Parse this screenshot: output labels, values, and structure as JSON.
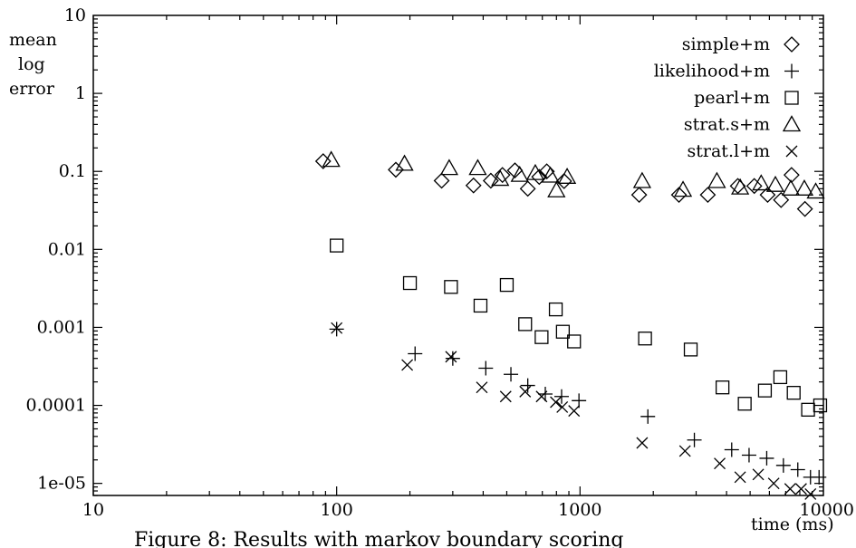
{
  "chart_data": {
    "type": "scatter",
    "ylabel": "mean log error",
    "ylabel_lines": [
      "mean",
      "log",
      "error"
    ],
    "xlabel": "time (ms)",
    "caption": "Figure 8: Results with markov boundary scoring",
    "x_scale": "log",
    "y_scale": "log",
    "xlim": [
      10,
      10000
    ],
    "ylim": [
      7e-06,
      10
    ],
    "grid": false,
    "legend_position": "top-right",
    "x_ticks": [
      {
        "value": 10,
        "label": "10"
      },
      {
        "value": 100,
        "label": "100"
      },
      {
        "value": 1000,
        "label": "1000"
      },
      {
        "value": 10000,
        "label": "10000"
      }
    ],
    "y_ticks": [
      {
        "value": 10,
        "label": "10"
      },
      {
        "value": 1,
        "label": "1"
      },
      {
        "value": 0.1,
        "label": "0.1"
      },
      {
        "value": 0.01,
        "label": "0.01"
      },
      {
        "value": 0.001,
        "label": "0.001"
      },
      {
        "value": 0.0001,
        "label": "0.0001"
      },
      {
        "value": 1e-05,
        "label": "1e-05"
      }
    ],
    "series": [
      {
        "name": "simple+m",
        "marker": "diamond",
        "points": [
          [
            88,
            0.135
          ],
          [
            175,
            0.105
          ],
          [
            270,
            0.076
          ],
          [
            365,
            0.066
          ],
          [
            430,
            0.076
          ],
          [
            480,
            0.09
          ],
          [
            540,
            0.103
          ],
          [
            610,
            0.06
          ],
          [
            680,
            0.085
          ],
          [
            730,
            0.1
          ],
          [
            860,
            0.075
          ],
          [
            1750,
            0.05
          ],
          [
            2550,
            0.05
          ],
          [
            3350,
            0.05
          ],
          [
            4450,
            0.065
          ],
          [
            5200,
            0.065
          ],
          [
            5900,
            0.05
          ],
          [
            6700,
            0.043
          ],
          [
            7400,
            0.09
          ],
          [
            8400,
            0.033
          ]
        ]
      },
      {
        "name": "likelihood+m",
        "marker": "plus",
        "points": [
          [
            100,
            0.00095
          ],
          [
            210,
            0.00046
          ],
          [
            300,
            0.0004
          ],
          [
            410,
            0.0003
          ],
          [
            520,
            0.00025
          ],
          [
            610,
            0.00018
          ],
          [
            720,
            0.00014
          ],
          [
            840,
            0.00013
          ],
          [
            990,
            0.000115
          ],
          [
            1900,
            7.2e-05
          ],
          [
            2950,
            3.6e-05
          ],
          [
            4200,
            2.7e-05
          ],
          [
            4950,
            2.3e-05
          ],
          [
            5850,
            2.1e-05
          ],
          [
            6850,
            1.7e-05
          ],
          [
            7850,
            1.5e-05
          ],
          [
            8850,
            1.2e-05
          ],
          [
            9600,
            1.2e-05
          ]
        ]
      },
      {
        "name": "pearl+m",
        "marker": "square",
        "points": [
          [
            100,
            0.0112
          ],
          [
            200,
            0.0037
          ],
          [
            295,
            0.0033
          ],
          [
            390,
            0.0019
          ],
          [
            500,
            0.0035
          ],
          [
            595,
            0.0011
          ],
          [
            695,
            0.00075
          ],
          [
            795,
            0.0017
          ],
          [
            850,
            0.00088
          ],
          [
            945,
            0.00066
          ],
          [
            1850,
            0.00072
          ],
          [
            2850,
            0.00052
          ],
          [
            3850,
            0.00017
          ],
          [
            4750,
            0.000105
          ],
          [
            5750,
            0.000155
          ],
          [
            6650,
            0.00023
          ],
          [
            7550,
            0.000145
          ],
          [
            8650,
            8.8e-05
          ],
          [
            9700,
            0.0001
          ]
        ]
      },
      {
        "name": "strat.s+m",
        "marker": "triangle",
        "points": [
          [
            95,
            0.14
          ],
          [
            190,
            0.125
          ],
          [
            290,
            0.11
          ],
          [
            380,
            0.11
          ],
          [
            470,
            0.08
          ],
          [
            565,
            0.09
          ],
          [
            655,
            0.095
          ],
          [
            755,
            0.088
          ],
          [
            800,
            0.057
          ],
          [
            885,
            0.085
          ],
          [
            1800,
            0.075
          ],
          [
            2650,
            0.058
          ],
          [
            3650,
            0.075
          ],
          [
            4550,
            0.062
          ],
          [
            5550,
            0.07
          ],
          [
            6350,
            0.067
          ],
          [
            7350,
            0.06
          ],
          [
            8350,
            0.06
          ],
          [
            9300,
            0.055
          ]
        ]
      },
      {
        "name": "strat.l+m",
        "marker": "cross",
        "points": [
          [
            100,
            0.00098
          ],
          [
            195,
            0.00033
          ],
          [
            295,
            0.00042
          ],
          [
            395,
            0.00017
          ],
          [
            495,
            0.00013
          ],
          [
            595,
            0.00015
          ],
          [
            695,
            0.00013
          ],
          [
            795,
            0.00011
          ],
          [
            845,
            9.5e-05
          ],
          [
            945,
            8.5e-05
          ],
          [
            1800,
            3.3e-05
          ],
          [
            2700,
            2.6e-05
          ],
          [
            3750,
            1.8e-05
          ],
          [
            4550,
            1.2e-05
          ],
          [
            5400,
            1.3e-05
          ],
          [
            6250,
            1e-05
          ],
          [
            7300,
            8.5e-06
          ],
          [
            8100,
            8.5e-06
          ],
          [
            8850,
            7.3e-06
          ]
        ]
      }
    ]
  }
}
